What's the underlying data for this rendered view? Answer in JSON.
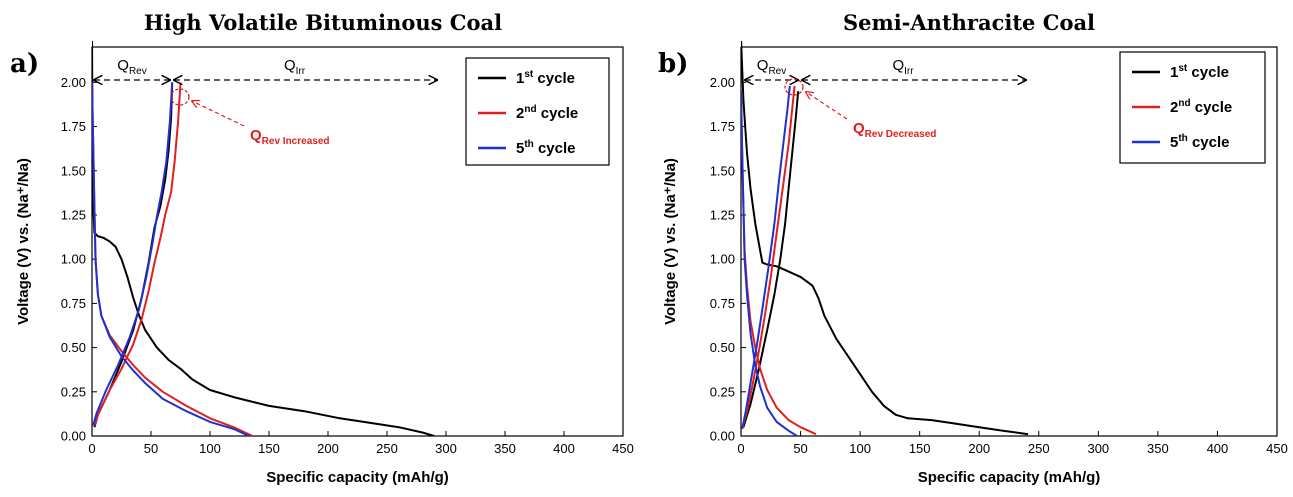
{
  "chart_data": [
    {
      "type": "line",
      "panel_label": "a)",
      "title": "High Volatile Bituminous Coal",
      "xlabel": "Specific capacity (mAh/g)",
      "ylabel": "Voltage (V) vs. (Na⁺/Na)",
      "xlim": [
        0,
        450
      ],
      "ylim": [
        0,
        2.2
      ],
      "xticks": [
        0,
        50,
        100,
        150,
        200,
        250,
        300,
        350,
        400,
        450
      ],
      "yticks": [
        "0.00",
        "0.25",
        "0.50",
        "0.75",
        "1.00",
        "1.25",
        "1.50",
        "1.75",
        "2.00"
      ],
      "legend_position": "top-right",
      "series": [
        {
          "name": "1st cycle",
          "base": "1",
          "sup": "st",
          "tail": " cycle",
          "color": "#000000",
          "discharge": [
            [
              0,
              2.25
            ],
            [
              0.5,
              1.6
            ],
            [
              1,
              1.3
            ],
            [
              2,
              1.15
            ],
            [
              5,
              1.13
            ],
            [
              10,
              1.12
            ],
            [
              15,
              1.1
            ],
            [
              20,
              1.07
            ],
            [
              25,
              1.0
            ],
            [
              30,
              0.9
            ],
            [
              35,
              0.78
            ],
            [
              40,
              0.68
            ],
            [
              45,
              0.6
            ],
            [
              55,
              0.5
            ],
            [
              65,
              0.43
            ],
            [
              75,
              0.38
            ],
            [
              85,
              0.32
            ],
            [
              100,
              0.26
            ],
            [
              120,
              0.22
            ],
            [
              150,
              0.17
            ],
            [
              180,
              0.14
            ],
            [
              210,
              0.1
            ],
            [
              240,
              0.07
            ],
            [
              260,
              0.05
            ],
            [
              280,
              0.02
            ],
            [
              290,
              0.0
            ]
          ],
          "charge": [
            [
              2,
              0.05
            ],
            [
              5,
              0.12
            ],
            [
              15,
              0.26
            ],
            [
              25,
              0.42
            ],
            [
              35,
              0.6
            ],
            [
              42,
              0.78
            ],
            [
              48,
              0.98
            ],
            [
              53,
              1.18
            ],
            [
              58,
              1.3
            ],
            [
              62,
              1.45
            ],
            [
              65,
              1.62
            ],
            [
              67,
              1.8
            ],
            [
              68,
              2.0
            ]
          ]
        },
        {
          "name": "2nd cycle",
          "base": "2",
          "sup": "nd",
          "tail": " cycle",
          "color": "#e02020",
          "discharge": [
            [
              0,
              2.0
            ],
            [
              1,
              1.65
            ],
            [
              2,
              1.3
            ],
            [
              3,
              1.0
            ],
            [
              5,
              0.8
            ],
            [
              8,
              0.68
            ],
            [
              15,
              0.57
            ],
            [
              25,
              0.48
            ],
            [
              35,
              0.4
            ],
            [
              45,
              0.33
            ],
            [
              60,
              0.25
            ],
            [
              80,
              0.17
            ],
            [
              100,
              0.1
            ],
            [
              120,
              0.05
            ],
            [
              136,
              0.0
            ]
          ],
          "charge": [
            [
              2,
              0.06
            ],
            [
              5,
              0.12
            ],
            [
              15,
              0.26
            ],
            [
              25,
              0.38
            ],
            [
              35,
              0.52
            ],
            [
              42,
              0.66
            ],
            [
              48,
              0.82
            ],
            [
              53,
              0.98
            ],
            [
              58,
              1.12
            ],
            [
              62,
              1.25
            ],
            [
              67,
              1.38
            ],
            [
              70,
              1.55
            ],
            [
              73,
              1.78
            ],
            [
              75,
              2.0
            ]
          ]
        },
        {
          "name": "5th cycle",
          "base": "5",
          "sup": "th",
          "tail": " cycle",
          "color": "#2030d0",
          "discharge": [
            [
              0,
              2.0
            ],
            [
              1,
              1.65
            ],
            [
              2,
              1.3
            ],
            [
              3,
              1.0
            ],
            [
              5,
              0.8
            ],
            [
              8,
              0.68
            ],
            [
              15,
              0.56
            ],
            [
              25,
              0.45
            ],
            [
              35,
              0.37
            ],
            [
              45,
              0.3
            ],
            [
              60,
              0.21
            ],
            [
              80,
              0.14
            ],
            [
              100,
              0.08
            ],
            [
              120,
              0.04
            ],
            [
              133,
              0.0
            ]
          ],
          "charge": [
            [
              1,
              0.06
            ],
            [
              4,
              0.13
            ],
            [
              12,
              0.26
            ],
            [
              22,
              0.4
            ],
            [
              32,
              0.56
            ],
            [
              40,
              0.72
            ],
            [
              46,
              0.9
            ],
            [
              51,
              1.08
            ],
            [
              55,
              1.24
            ],
            [
              59,
              1.38
            ],
            [
              63,
              1.55
            ],
            [
              66,
              1.78
            ],
            [
              68,
              2.0
            ]
          ]
        }
      ],
      "annotations": {
        "q_rev_base": "Q",
        "q_rev_sub": "Rev",
        "q_irr_base": "Q",
        "q_irr_sub": "Irr",
        "note_base": "Q",
        "note_sub": "Rev Increased"
      }
    },
    {
      "type": "line",
      "panel_label": "b)",
      "title": "Semi-Anthracite Coal",
      "xlabel": "Specific capacity (mAh/g)",
      "ylabel": "Voltage (V) vs. (Na⁺/Na)",
      "xlim": [
        0,
        450
      ],
      "ylim": [
        0,
        2.2
      ],
      "xticks": [
        0,
        50,
        100,
        150,
        200,
        250,
        300,
        350,
        400,
        450
      ],
      "yticks": [
        "0.00",
        "0.25",
        "0.50",
        "0.75",
        "1.00",
        "1.25",
        "1.50",
        "1.75",
        "2.00"
      ],
      "legend_position": "top-right",
      "series": [
        {
          "name": "1st cycle",
          "base": "1",
          "sup": "st",
          "tail": " cycle",
          "color": "#000000",
          "discharge": [
            [
              0,
              2.25
            ],
            [
              2,
              1.9
            ],
            [
              5,
              1.6
            ],
            [
              8,
              1.4
            ],
            [
              12,
              1.2
            ],
            [
              16,
              1.05
            ],
            [
              18,
              0.98
            ],
            [
              22,
              0.97
            ],
            [
              30,
              0.96
            ],
            [
              40,
              0.93
            ],
            [
              50,
              0.9
            ],
            [
              60,
              0.85
            ],
            [
              65,
              0.78
            ],
            [
              70,
              0.68
            ],
            [
              80,
              0.55
            ],
            [
              90,
              0.45
            ],
            [
              100,
              0.35
            ],
            [
              110,
              0.25
            ],
            [
              120,
              0.17
            ],
            [
              130,
              0.12
            ],
            [
              140,
              0.1
            ],
            [
              160,
              0.09
            ],
            [
              180,
              0.07
            ],
            [
              200,
              0.05
            ],
            [
              220,
              0.03
            ],
            [
              241,
              0.01
            ]
          ],
          "charge": [
            [
              2,
              0.05
            ],
            [
              8,
              0.18
            ],
            [
              15,
              0.38
            ],
            [
              22,
              0.6
            ],
            [
              28,
              0.8
            ],
            [
              33,
              1.0
            ],
            [
              37,
              1.2
            ],
            [
              40,
              1.4
            ],
            [
              43,
              1.6
            ],
            [
              46,
              1.8
            ],
            [
              48,
              1.95
            ]
          ]
        },
        {
          "name": "2nd cycle",
          "base": "2",
          "sup": "nd",
          "tail": " cycle",
          "color": "#e02020",
          "discharge": [
            [
              0,
              1.95
            ],
            [
              1,
              1.6
            ],
            [
              2,
              1.3
            ],
            [
              3,
              1.05
            ],
            [
              5,
              0.85
            ],
            [
              8,
              0.65
            ],
            [
              12,
              0.5
            ],
            [
              16,
              0.38
            ],
            [
              22,
              0.26
            ],
            [
              30,
              0.16
            ],
            [
              40,
              0.09
            ],
            [
              50,
              0.05
            ],
            [
              63,
              0.01
            ]
          ],
          "charge": [
            [
              1,
              0.04
            ],
            [
              5,
              0.14
            ],
            [
              10,
              0.3
            ],
            [
              15,
              0.48
            ],
            [
              20,
              0.68
            ],
            [
              25,
              0.9
            ],
            [
              30,
              1.15
            ],
            [
              35,
              1.4
            ],
            [
              40,
              1.65
            ],
            [
              43,
              1.85
            ],
            [
              45,
              1.98
            ]
          ]
        },
        {
          "name": "5th cycle",
          "base": "5",
          "sup": "th",
          "tail": " cycle",
          "color": "#2030d0",
          "discharge": [
            [
              0,
              1.95
            ],
            [
              1,
              1.6
            ],
            [
              2,
              1.3
            ],
            [
              3,
              1.0
            ],
            [
              5,
              0.8
            ],
            [
              8,
              0.58
            ],
            [
              12,
              0.4
            ],
            [
              16,
              0.28
            ],
            [
              22,
              0.16
            ],
            [
              30,
              0.08
            ],
            [
              40,
              0.03
            ],
            [
              47,
              0.0
            ]
          ],
          "charge": [
            [
              1,
              0.04
            ],
            [
              4,
              0.14
            ],
            [
              8,
              0.3
            ],
            [
              13,
              0.5
            ],
            [
              18,
              0.72
            ],
            [
              23,
              0.95
            ],
            [
              28,
              1.2
            ],
            [
              32,
              1.45
            ],
            [
              36,
              1.68
            ],
            [
              39,
              1.85
            ],
            [
              41,
              1.98
            ]
          ]
        }
      ],
      "annotations": {
        "q_rev_base": "Q",
        "q_rev_sub": "Rev",
        "q_irr_base": "Q",
        "q_irr_sub": "Irr",
        "note_base": "Q",
        "note_sub": "Rev Decreased"
      }
    }
  ]
}
